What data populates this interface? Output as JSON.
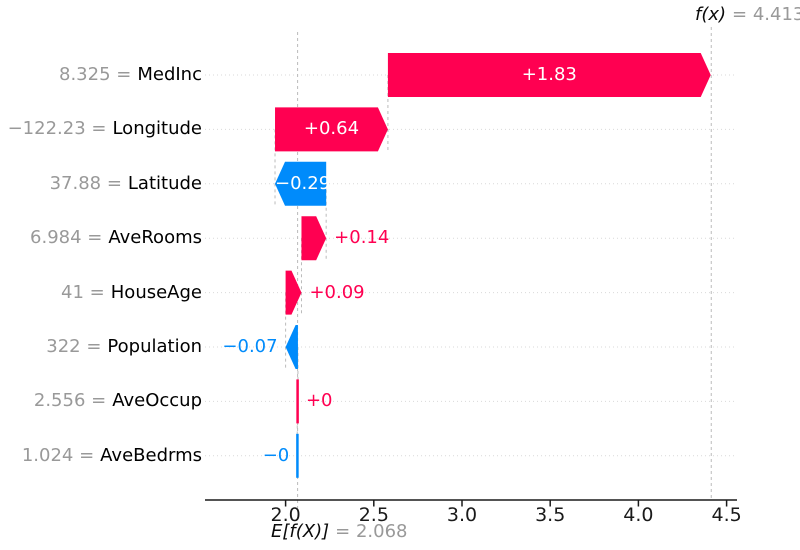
{
  "chart_data": {
    "type": "bar",
    "subtype": "shap-waterfall",
    "title": "",
    "xlabel": "",
    "ylabel": "",
    "grid": "dotted-horizontal-rows",
    "legend": "none",
    "xlim": [
      1.54,
      4.56
    ],
    "xticks": [
      2.0,
      2.5,
      3.0,
      3.5,
      4.0,
      4.5
    ],
    "xtick_labels": [
      "2.0",
      "2.5",
      "3.0",
      "3.5",
      "4.0",
      "4.5"
    ],
    "fx_name": "f(x)",
    "fx_value_text": "= 4.413",
    "fx_value": 4.413,
    "base_name": "E[f(X)]",
    "base_value_text": "= 2.068",
    "base_value": 2.068,
    "colors": {
      "positive": "#ff0051",
      "negative": "#008bfb",
      "gray_text": "#999999",
      "connector": "#bbbbbb",
      "row_gridline": "#d9d9d9",
      "axis": "#1a1a1a"
    },
    "features": [
      {
        "name": "MedInc",
        "value_eq": "8.325 =",
        "data_value": "8.325",
        "shap": 1.83,
        "shap_label": "+1.83"
      },
      {
        "name": "Longitude",
        "value_eq": "−122.23 =",
        "data_value": "−122.23",
        "shap": 0.64,
        "shap_label": "+0.64"
      },
      {
        "name": "Latitude",
        "value_eq": "37.88 =",
        "data_value": "37.88",
        "shap": -0.29,
        "shap_label": "−0.29"
      },
      {
        "name": "AveRooms",
        "value_eq": "6.984 =",
        "data_value": "6.984",
        "shap": 0.14,
        "shap_label": "+0.14"
      },
      {
        "name": "HouseAge",
        "value_eq": "41 =",
        "data_value": "41",
        "shap": 0.09,
        "shap_label": "+0.09"
      },
      {
        "name": "Population",
        "value_eq": "322 =",
        "data_value": "322",
        "shap": -0.07,
        "shap_label": "−0.07"
      },
      {
        "name": "AveOccup",
        "value_eq": "2.556 =",
        "data_value": "2.556",
        "shap": 0.004,
        "shap_label": "+0"
      },
      {
        "name": "AveBedrms",
        "value_eq": "1.024 =",
        "data_value": "1.024",
        "shap": -0.002,
        "shap_label": "−0"
      }
    ]
  }
}
